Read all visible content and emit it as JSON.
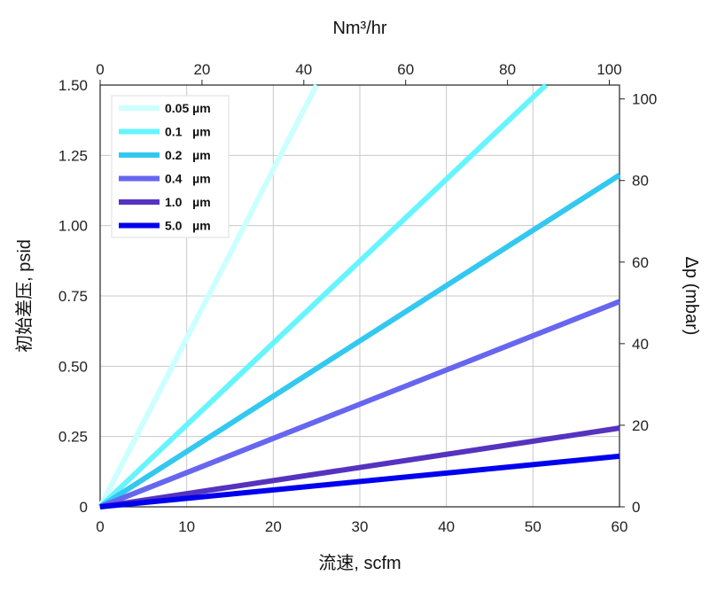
{
  "chart_data": {
    "type": "line",
    "x": {
      "label": "流速, scfm",
      "range": [
        0,
        60
      ],
      "ticks": [
        "0",
        "10",
        "20",
        "30",
        "40",
        "50",
        "60"
      ]
    },
    "x2": {
      "label": "Nm³/hr",
      "range": [
        0,
        102
      ],
      "ticks": [
        "0",
        "20",
        "40",
        "60",
        "80",
        "100"
      ]
    },
    "y": {
      "label": "初始差压, psid",
      "range": [
        0,
        1.5
      ],
      "ticks": [
        "0",
        "0.25",
        "0.50",
        "0.75",
        "1.00",
        "1.25",
        "1.50"
      ]
    },
    "y2": {
      "label": "Δp (mbar)",
      "range": [
        0,
        103.4
      ],
      "ticks": [
        "0",
        "20",
        "40",
        "60",
        "80",
        "100"
      ]
    },
    "grid": true,
    "legend_position": "top-left",
    "series": [
      {
        "name": "0.05 µm",
        "color": "#ccffff",
        "points": [
          [
            0,
            0
          ],
          [
            25,
            1.5
          ]
        ]
      },
      {
        "name": "0.1   µm",
        "color": "#66f5ff",
        "points": [
          [
            0,
            0
          ],
          [
            51.5,
            1.5
          ]
        ]
      },
      {
        "name": "0.2   µm",
        "color": "#33c8f0",
        "points": [
          [
            0,
            0
          ],
          [
            60,
            1.18
          ]
        ]
      },
      {
        "name": "0.4   µm",
        "color": "#6666f0",
        "points": [
          [
            0,
            0
          ],
          [
            60,
            0.73
          ]
        ]
      },
      {
        "name": "1.0   µm",
        "color": "#5533c0",
        "points": [
          [
            0,
            0
          ],
          [
            60,
            0.28
          ]
        ]
      },
      {
        "name": "5.0   µm",
        "color": "#0000ee",
        "points": [
          [
            0,
            0
          ],
          [
            60,
            0.18
          ]
        ]
      }
    ]
  }
}
